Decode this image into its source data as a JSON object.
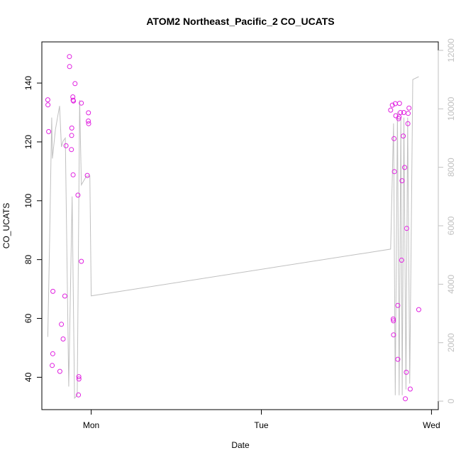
{
  "chart_data": {
    "type": "scatter",
    "title": "ATOM2 Northeast_Pacific_2 CO_UCATS",
    "xlabel": "Date",
    "ylabel": "CO_UCATS",
    "x_unit": "days",
    "xlim": [
      -0.29,
      2.04
    ],
    "ylim": [
      29,
      154
    ],
    "y2lim": [
      -290,
      12290
    ],
    "xticks": [
      {
        "value": 0,
        "label": "Mon"
      },
      {
        "value": 1,
        "label": "Tue"
      },
      {
        "value": 2,
        "label": "Wed"
      }
    ],
    "yticks": [
      40,
      60,
      80,
      100,
      120,
      140
    ],
    "y2ticks": [
      0,
      2000,
      4000,
      6000,
      8000,
      10000,
      12000
    ],
    "grid": false,
    "legend": "none",
    "colors": {
      "points": "#e020e0",
      "line": "#c0c0c0",
      "axis": "#000000",
      "secondary_axis": "#c0c0c0"
    },
    "series": [
      {
        "marker": "circle",
        "axis": "left",
        "points": [
          [
            -0.255,
            134.3
          ],
          [
            -0.254,
            132.6
          ],
          [
            -0.25,
            123.5
          ],
          [
            -0.225,
            69.2
          ],
          [
            -0.226,
            48.0
          ],
          [
            -0.229,
            44.0
          ],
          [
            -0.184,
            42.0
          ],
          [
            -0.175,
            58.0
          ],
          [
            -0.165,
            53.0
          ],
          [
            -0.155,
            67.6
          ],
          [
            -0.148,
            118.7
          ],
          [
            -0.128,
            149.0
          ],
          [
            -0.127,
            145.6
          ],
          [
            -0.115,
            122.2
          ],
          [
            -0.114,
            124.7
          ],
          [
            -0.116,
            117.4
          ],
          [
            -0.108,
            135.3
          ],
          [
            -0.106,
            134.2
          ],
          [
            -0.104,
            133.9
          ],
          [
            -0.106,
            108.8
          ],
          [
            -0.095,
            139.8
          ],
          [
            -0.078,
            101.9
          ],
          [
            -0.073,
            40.2
          ],
          [
            -0.072,
            39.4
          ],
          [
            -0.075,
            34.0
          ],
          [
            -0.058,
            133.2
          ],
          [
            -0.058,
            79.4
          ],
          [
            -0.023,
            108.6
          ],
          [
            -0.016,
            129.9
          ],
          [
            -0.017,
            127.1
          ],
          [
            -0.015,
            126.2
          ],
          [
            1.76,
            130.8
          ],
          [
            1.77,
            132.5
          ],
          [
            1.775,
            59.8
          ],
          [
            1.776,
            59.2
          ],
          [
            1.777,
            54.4
          ],
          [
            1.78,
            121.1
          ],
          [
            1.782,
            109.9
          ],
          [
            1.787,
            133.0
          ],
          [
            1.79,
            128.9
          ],
          [
            1.802,
            64.4
          ],
          [
            1.802,
            46.1
          ],
          [
            1.807,
            127.9
          ],
          [
            1.81,
            128.5
          ],
          [
            1.812,
            133.1
          ],
          [
            1.818,
            130.0
          ],
          [
            1.824,
            79.8
          ],
          [
            1.827,
            106.8
          ],
          [
            1.834,
            122.0
          ],
          [
            1.837,
            130.0
          ],
          [
            1.842,
            111.3
          ],
          [
            1.846,
            32.7
          ],
          [
            1.852,
            41.7
          ],
          [
            1.854,
            90.6
          ],
          [
            1.861,
            126.2
          ],
          [
            1.863,
            129.7
          ],
          [
            1.868,
            131.5
          ],
          [
            1.875,
            36.0
          ],
          [
            1.925,
            63.0
          ]
        ]
      },
      {
        "marker": "line",
        "axis": "right",
        "points": [
          [
            -0.255,
            2200
          ],
          [
            -0.245,
            5300
          ],
          [
            -0.232,
            9700
          ],
          [
            -0.228,
            8300
          ],
          [
            -0.21,
            9300
          ],
          [
            -0.186,
            10100
          ],
          [
            -0.175,
            8700
          ],
          [
            -0.165,
            8900
          ],
          [
            -0.152,
            9000
          ],
          [
            -0.132,
            500
          ],
          [
            -0.112,
            7000
          ],
          [
            -0.098,
            100
          ],
          [
            -0.082,
            200
          ],
          [
            -0.068,
            10300
          ],
          [
            -0.058,
            7400
          ],
          [
            -0.028,
            7700
          ],
          [
            -0.008,
            7700
          ],
          [
            0,
            3600
          ],
          [
            1.76,
            5200
          ],
          [
            1.777,
            9500
          ],
          [
            1.787,
            200
          ],
          [
            1.8,
            9900
          ],
          [
            1.81,
            200
          ],
          [
            1.82,
            9700
          ],
          [
            1.828,
            200
          ],
          [
            1.838,
            9700
          ],
          [
            1.85,
            400
          ],
          [
            1.86,
            9700
          ],
          [
            1.872,
            600
          ],
          [
            1.89,
            11000
          ],
          [
            1.925,
            11100
          ]
        ]
      }
    ]
  }
}
